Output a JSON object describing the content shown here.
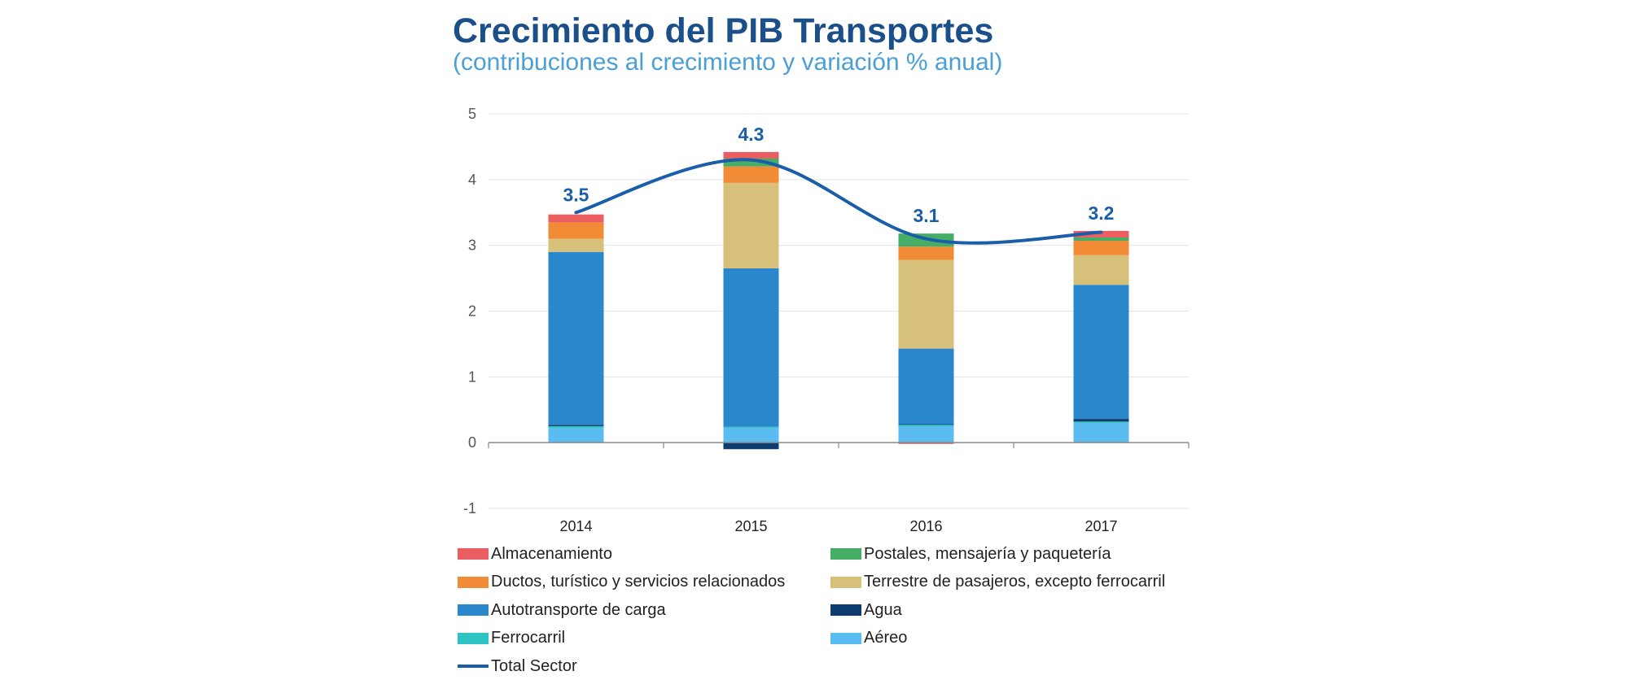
{
  "chart_data": {
    "type": "bar",
    "stacked": true,
    "title": "Crecimiento del PIB Transportes",
    "subtitle": "(contribuciones al crecimiento y variación % anual)",
    "xlabel": "",
    "ylabel": "",
    "ylim": [
      -1,
      5
    ],
    "yticks": [
      5,
      4,
      3,
      2,
      1,
      0,
      -1
    ],
    "grid": true,
    "categories": [
      "2014",
      "2015",
      "2016",
      "2017"
    ],
    "series": [
      {
        "name": "Aéreo",
        "color": "#5bbcf2",
        "values": [
          0.22,
          0.22,
          0.25,
          0.3
        ]
      },
      {
        "name": "Ferrocarril",
        "color": "#2ec4c4",
        "values": [
          0.03,
          0.02,
          0.02,
          0.02
        ]
      },
      {
        "name": "Agua",
        "color": "#0d3c6e",
        "values": [
          0.02,
          -0.1,
          0.01,
          0.04
        ]
      },
      {
        "name": "Autotransporte de carga",
        "color": "#2b87cc",
        "values": [
          2.63,
          2.41,
          1.15,
          2.04
        ]
      },
      {
        "name": "Terrestre de pasajeros, excepto ferrocarril",
        "color": "#d7c17a",
        "values": [
          0.2,
          1.3,
          1.35,
          0.45
        ]
      },
      {
        "name": "Ductos, turístico y servicios relacionados",
        "color": "#f28b36",
        "values": [
          0.25,
          0.25,
          0.2,
          0.22
        ]
      },
      {
        "name": "Postales, mensajería y paquetería",
        "color": "#46ad66",
        "values": [
          0.0,
          0.12,
          0.2,
          0.05
        ]
      },
      {
        "name": "Almacenamiento",
        "color": "#ea5e62",
        "values": [
          0.12,
          0.1,
          -0.02,
          0.1
        ]
      }
    ],
    "total": {
      "name": "Total Sector",
      "color": "#1a5da8",
      "values": [
        3.5,
        4.3,
        3.1,
        3.2
      ],
      "labels": [
        "3.5",
        "4.3",
        "3.1",
        "3.2"
      ]
    },
    "legend_position": "bottom",
    "legend": [
      {
        "label": "Almacenamiento",
        "color": "#ea5e62",
        "kind": "box"
      },
      {
        "label": "Postales, mensajería y paquetería",
        "color": "#46ad66",
        "kind": "box"
      },
      {
        "label": "Ductos, turístico y servicios relacionados",
        "color": "#f28b36",
        "kind": "box"
      },
      {
        "label": "Terrestre de pasajeros, excepto ferrocarril",
        "color": "#d7c17a",
        "kind": "box"
      },
      {
        "label": "Autotransporte de carga",
        "color": "#2b87cc",
        "kind": "box"
      },
      {
        "label": "Agua",
        "color": "#0d3c6e",
        "kind": "box"
      },
      {
        "label": "Ferrocarril",
        "color": "#2ec4c4",
        "kind": "box"
      },
      {
        "label": "Aéreo",
        "color": "#5bbcf2",
        "kind": "box"
      },
      {
        "label": "Total Sector",
        "color": "#1a5da8",
        "kind": "line"
      }
    ]
  }
}
